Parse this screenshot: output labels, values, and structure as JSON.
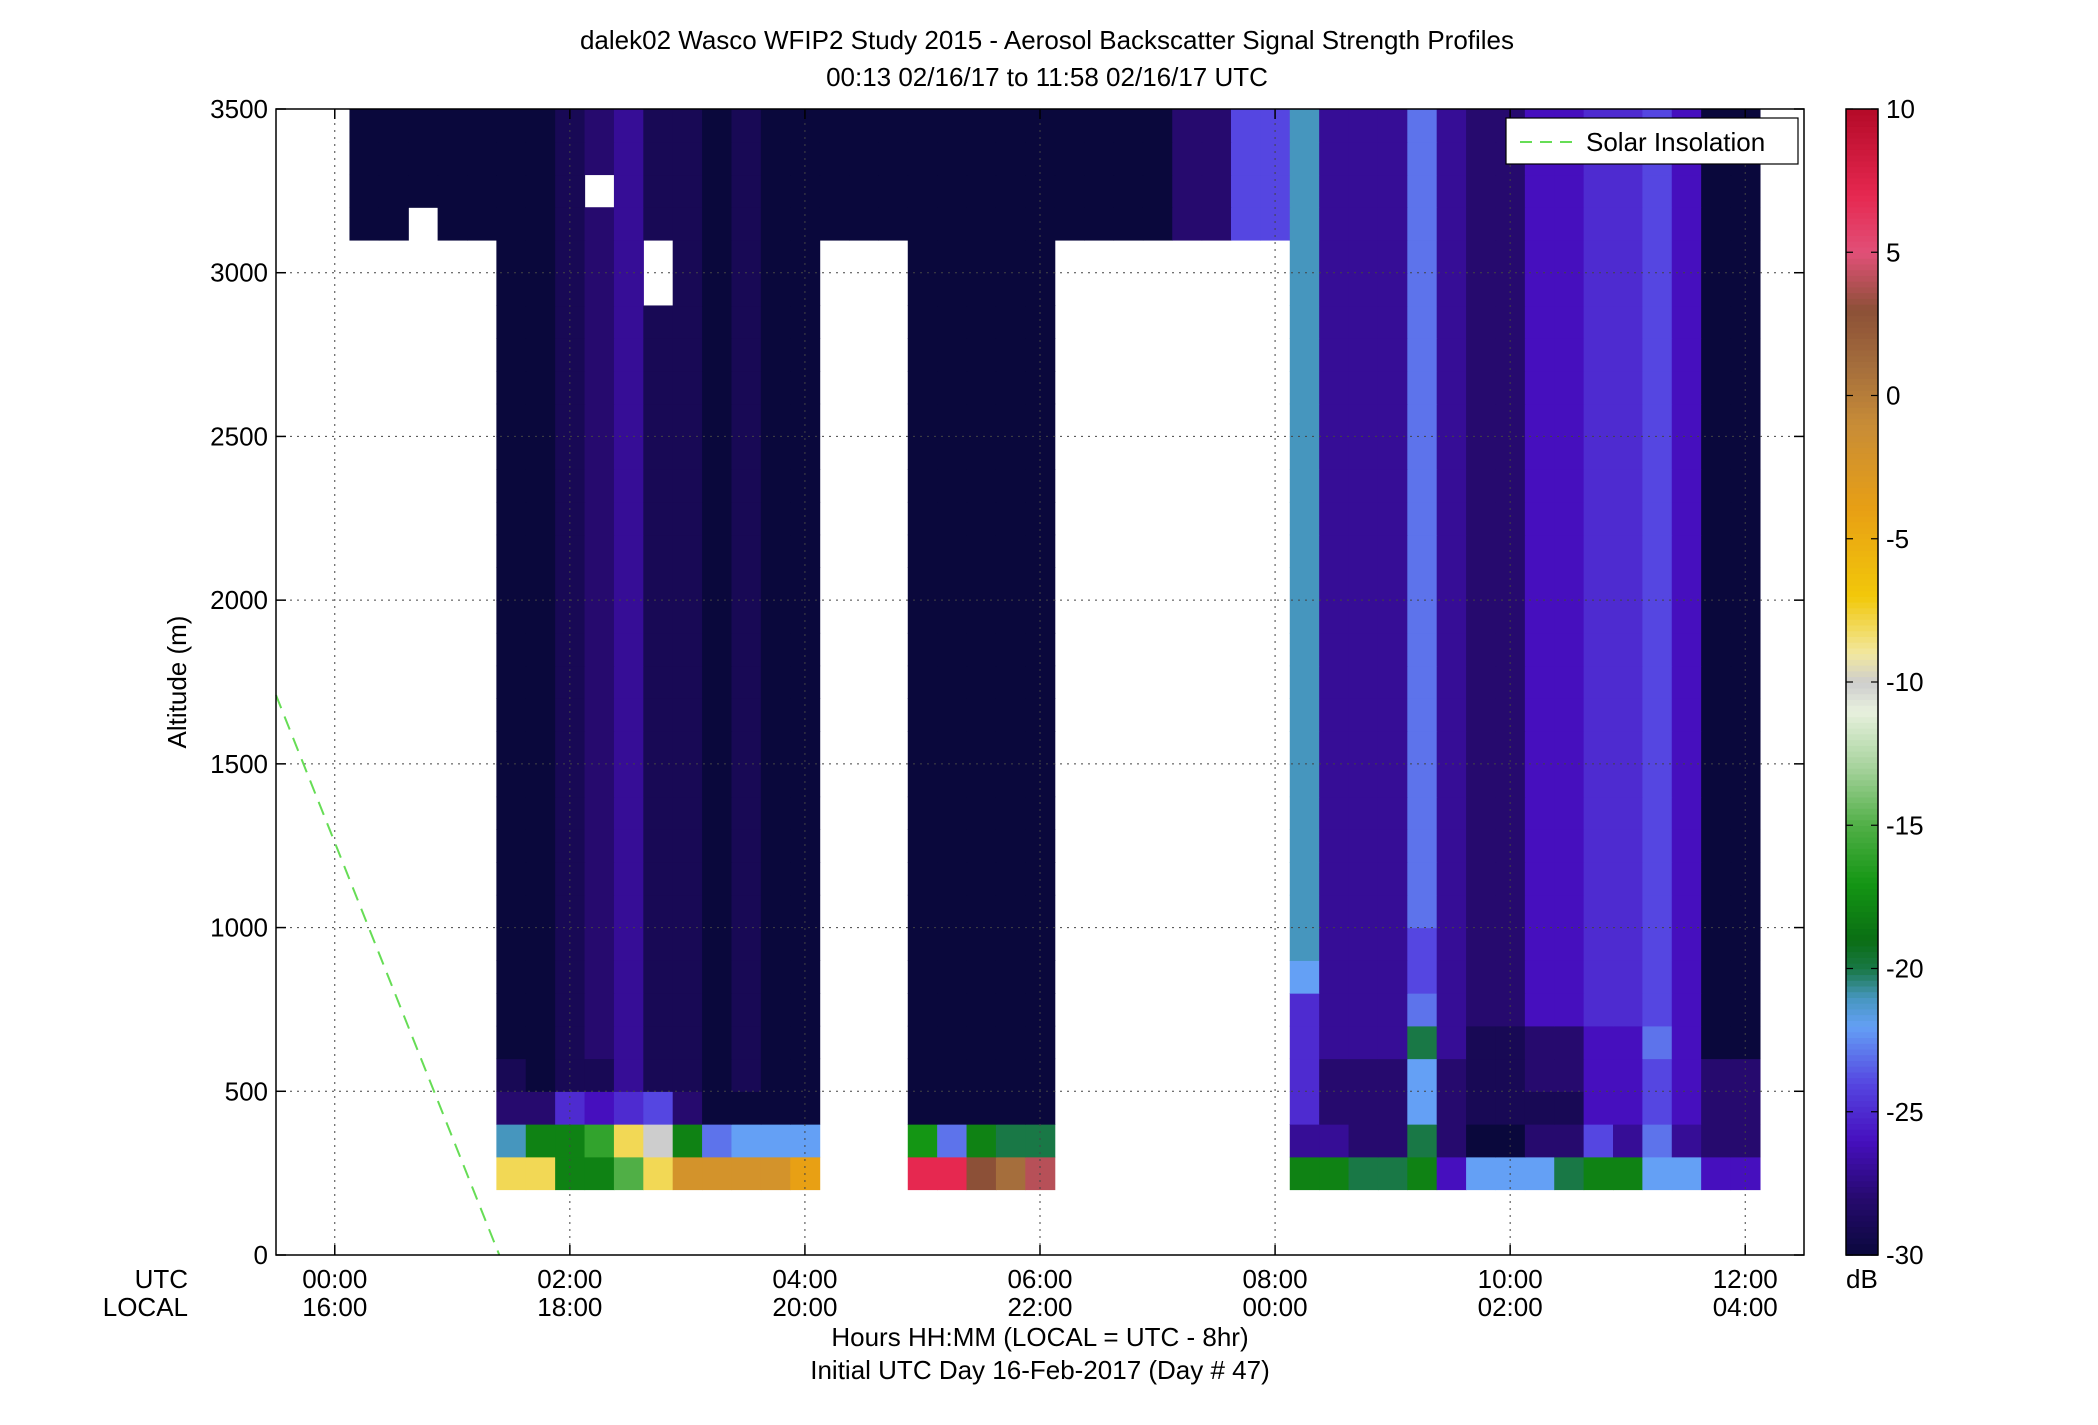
{
  "chart_data": {
    "type": "heatmap",
    "title": "dalek02 Wasco WFIP2 Study 2015 - Aerosol Backscatter Signal Strength Profiles",
    "subtitle": "00:13 02/16/17 to 11:58 02/16/17  UTC",
    "ylabel": "Altitude (m)",
    "xlabel": "Hours HH:MM  (LOCAL = UTC - 8hr)",
    "xlabel2": "Initial UTC Day 16-Feb-2017 (Day # 47)",
    "utc_label": "UTC",
    "local_label": "LOCAL",
    "x_ticks_utc": [
      "00:00",
      "02:00",
      "04:00",
      "06:00",
      "08:00",
      "10:00",
      "12:00"
    ],
    "x_ticks_local": [
      "16:00",
      "18:00",
      "20:00",
      "22:00",
      "00:00",
      "02:00",
      "04:00"
    ],
    "x_tick_hours": [
      0,
      2,
      4,
      6,
      8,
      10,
      12
    ],
    "xlim_hours": [
      -0.5,
      12.5
    ],
    "ylim": [
      0,
      3500
    ],
    "y_ticks": [
      0,
      500,
      1000,
      1500,
      2000,
      2500,
      3000,
      3500
    ],
    "y_tick_labels": [
      "0",
      "500",
      "1000",
      "1500",
      "2000",
      "2500",
      "3000",
      "3500"
    ],
    "grid": true,
    "legend": {
      "position": "top-right",
      "entries": [
        {
          "name": "Solar Insolation",
          "color": "#66dd55",
          "style": "dashed"
        }
      ]
    },
    "solar_insolation_line": {
      "x_hours": [
        -0.5,
        1.4
      ],
      "y_m": [
        1710,
        0
      ]
    },
    "colorbar": {
      "label": "dB",
      "range": [
        -30,
        10
      ],
      "ticks": [
        10,
        5,
        0,
        -5,
        -10,
        -15,
        -20,
        -25,
        -30
      ],
      "tick_labels": [
        "10",
        "5",
        "0",
        "-5",
        "-10",
        "-15",
        "-20",
        "-25",
        "-30"
      ]
    },
    "cell_width_hours": 0.25,
    "cell_height_m": 100,
    "first_center_hour": 0.25,
    "first_center_altitude_m": 250,
    "cells_db": [
      "-12,-7,-2,-2,-2,-8,-8,-18,-18,-15,-8,-2,-2,-2,-2,-4,-4,-12,4,7,7,3,1,4,2,2,1,1,-8,-16,-20,-26,-18,-18,-20,-20,-18,-26,-22,-22,-22,-20,-18,-18,-22,-22,-26,-26",
      "-20,-20,-20,-20,-20,-21,-18,-18,-16,-8,-10,-18,-23,-22,-22,-22,-6,-8,-30,-17,-23,-18,-20,-20,-25,-30,-30,-30,-30,-30,-30,-30,-27,-27,-28,-28,-20,-28,-30,-30,-28,-28,-24,-27,-23,-27,-28,-28",
      "-24,-25,-30,-30,-25,-28,-28,-25,-26,-25,-24,-28,-30,-30,-30,-30,-30,-30,-30,-30,-30,-30,-30,-30,-30,-30,-30,-30,-28,-28,-28,-28,-25,-28,-28,-28,-22,-28,-29,-29,-29,-29,-26,-26,-24,-26,-28,-28",
      "-29,-29,-30,-30,-30,-29,-30,-29,-29,-27,-29,-29,-30,-29,-30,-30,-30,-30,-30,-30,-30,-30,-30,-30,-30,-30,-30,-30,-28,-28,-27,-27,-25,-28,-28,-28,-22,-28,-29,-29,-28,-28,-26,-26,-24,-26,-28,-28",
      "-30,-30,-30,-30,-30,-30,-30,-29,-28,-27,-29,-29,-30,-29,-30,-30,-30,-30,-30,-30,-30,-30,-30,-30,-30,-30,-30,-30,-28,-28,-26,-26,-25,-27,-27,-27,-20,-27,-29,-29,-28,-28,-26,-26,-23,-26,-30,-30",
      "-30,-30,-30,-30,-30,-30,-30,-29,-28,-27,-29,-29,-30,-29,-30,-30,-30,-30,-30,-30,-30,-30,-30,-30,-30,-30,-30,-30,-28,-28,-25,-26,-25,-27,-27,-27,-23,-27,-28,-28,-26,-26,-25,-25,-24,-26,-30,-30",
      "-30,-30,-30,-30,-30,-30,-30,-29,-28,-27,-29,-29,-30,-29,-30,-30,-30,-30,-30,-30,-30,-30,-30,-30,-30,-30,-30,-30,-28,-28,-24,-24,-22,-27,-27,-27,-24,-27,-28,-28,-26,-26,-25,-25,-24,-26,-30,-30",
      "-30,-30,-30,-30,-30,-30,-30,-29,-28,-27,-29,-29,-30,-29,-30,-30,-30,-30,-30,-30,-30,-30,-30,-30,-30,-30,-30,-30,-28,-28,-24,-24,-21,-27,-27,-27,-24,-27,-28,-28,-26,-26,-25,-25,-24,-26,-30,-30",
      "-30,-30,-30,-30,-30,-30,-30,-29,-28,-27,-29,-29,-30,-29,-30,-30,-30,-30,-30,-30,-30,-30,-30,-30,-30,-30,-30,-30,-28,-28,-24,-24,-21,-27,-27,-27,-23,-27,-28,-28,-26,-26,-25,-25,-24,-26,-30,-30",
      "-30,-30,-30,-30,-30,-30,-30,-29,-28,-27,-29,-29,-30,-29,-30,-30,-30,-30,-30,-30,-30,-30,-30,-30,-30,-30,-30,-30,-28,-28,-24,-24,-21,-27,-27,-27,-23,-27,-28,-28,-26,-26,-25,-25,-24,-26,-30,-30",
      "-30,-30,-30,-30,-30,-30,-30,-29,-28,-27,-29,-29,-30,-29,-30,-30,-30,-30,-30,-30,-30,-30,-30,-30,-30,-30,-30,-30,-28,-28,-24,-24,-21,-27,-27,-27,-23,-27,-28,-28,-26,-26,-25,-25,-24,-26,-30,-30",
      "-30,-30,-30,-30,-30,-30,-30,-29,-28,-27,-29,-29,-30,-29,-30,-30,-30,-30,-30,-30,-30,-30,-30,-30,-30,-30,-30,-30,-28,-28,-24,-24,-21,-27,-27,-27,-23,-27,-28,-28,-26,-26,-25,-25,-24,-26,-30,-30",
      "-30,-30,-30,-30,-30,-30,-30,-29,-28,-27,-29,-29,-30,-29,-30,-30,-30,-30,-30,-30,-30,-30,-30,-30,-30,-30,-30,-30,-28,-28,-24,-24,-21,-27,-27,-27,-23,-27,-28,-28,-26,-26,-25,-25,-24,-26,-30,-30",
      "-30,-30,-30,-30,-30,-30,-30,-29,-28,-27,-29,-29,-30,-29,-30,-30,-30,-30,-30,-30,-30,-30,-30,-30,-30,-30,-30,-30,-28,-28,-24,-24,-21,-27,-27,-27,-23,-27,-28,-28,-26,-26,-25,-25,-24,-26,-30,-30",
      "-30,-30,-30,-30,-30,-30,-30,-29,-28,-27,-29,-29,-30,-29,-30,-30,-30,-30,-30,-30,-30,-30,-30,-30,-30,-30,-30,-30,-28,-28,-24,-24,-21,-27,-27,-27,-23,-27,-28,-28,-26,-26,-25,-25,-24,-26,-30,-30",
      "-30,-30,-30,-30,-30,-30,-30,-29,-28,-27,-29,-29,-30,-29,-30,-30,-30,-30,-30,-30,-30,-30,-30,-30,-30,-30,-30,-30,-28,-28,-24,-24,-21,-27,-27,-27,-23,-27,-28,-28,-26,-26,-25,-25,-24,-26,-30,-30",
      "-30,-30,-30,-30,-30,-30,-30,-29,-28,-27,-29,-29,-30,-29,-30,-30,-30,-30,-30,-30,-30,-30,-30,-30,-30,-30,-30,-30,-28,-28,-24,-24,-21,-27,-27,-27,-23,-27,-28,-28,-26,-26,-25,-25,-24,-26,-30,-30",
      "-30,-30,-30,-30,-30,-30,-30,-29,-28,-27,-29,-29,-30,-29,-30,-30,-30,-30,-30,-30,-30,-30,-30,-30,-30,-30,-30,-30,-28,-28,-24,-24,-21,-27,-27,-27,-23,-27,-28,-28,-26,-26,-25,-25,-24,-26,-30,-30",
      "-30,-30,-30,-30,-30,-30,-30,-29,-28,-27,-29,-29,-30,-29,-30,-30,-30,-30,-30,-30,-30,-30,-30,-30,-30,-30,-30,-30,-28,-28,-24,-24,-21,-27,-27,-27,-23,-27,-28,-28,-26,-26,-25,-25,-24,-26,-30,-30",
      "-30,-30,-30,-30,-30,-30,-30,-29,-28,-27,-29,-29,-30,-29,-30,-30,-30,-30,-30,-30,-30,-30,-30,-30,-30,-30,-30,-30,-28,-28,-24,-24,-21,-27,-27,-27,-23,-27,-28,-28,-26,-26,-25,-25,-24,-26,-30,-30",
      "-30,-30,-30,-30,-30,-30,-30,-29,-28,-27,-29,-29,-30,-29,-30,-30,-30,-30,-30,-30,-30,-30,-30,-30,-30,-30,-30,-30,-28,-28,-24,-24,-21,-27,-27,-27,-23,-27,-28,-28,-26,-26,-25,-25,-24,-26,-30,-30",
      "-30,-30,-30,-30,-30,-30,-30,-29,-28,-27,-29,-29,-30,-29,-30,-30,-30,-30,-30,-30,-30,-30,-30,-30,-30,-30,-30,-30,-28,-28,-24,-24,-21,-27,-27,-27,-23,-27,-28,-28,-26,-26,-25,-25,-24,-26,-30,-30",
      "-30,-30,-30,-30,-30,-30,-30,-29,-28,-27,-29,-29,-30,-29,-30,-30,-30,-30,-30,-30,-30,-30,-30,-30,-30,-30,-30,-30,-28,-28,-24,-24,-21,-27,-27,-27,-23,-27,-28,-28,-26,-26,-25,-25,-24,-26,-30,-30",
      "-30,-30,-30,-30,-30,-30,-30,-29,-28,-27,-29,-29,-30,-29,-30,-30,-30,-30,-30,-30,-30,-30,-30,-30,-30,-30,-30,-30,-28,-28,-24,-24,-21,-27,-27,-27,-23,-27,-28,-28,-26,-26,-25,-25,-24,-26,-30,-30",
      "-30,-30,-30,-30,-30,-30,-30,-29,-28,-27,-29,-29,-30,-29,-30,-30,-30,-30,-30,-30,-30,-30,-30,-30,-30,-30,-30,-30,-28,-28,-24,-24,-21,-27,-27,-27,-23,-27,-28,-28,-26,-26,-25,-25,-24,-26,-30,-30",
      "-30,-30,-30,-30,-30,-30,-30,-29,-28,-27,-29,-29,-30,-29,-30,-30,-30,-30,-30,-30,-30,-30,-30,-30,-30,-30,-30,-30,-28,-28,-24,-24,-21,-27,-27,-27,-23,-27,-28,-28,-26,-26,-25,-25,-24,-26,-30,-30",
      "-30,-30,-30,-30,-30,-30,-30,-29,-28,-27,-29,-29,-30,-29,-30,-30,-30,-30,-30,-30,-30,-30,-30,-30,-30,-30,-30,-30,-28,-28,-24,-24,-21,-27,-27,-27,-23,-27,-28,-28,-26,-26,-25,-25,-24,-26,-30,-30",
      "-30,-30,-30,-30,-30,-30,-30,-29,-28,-27,-29,-29,-30,-29,-30,-30,-30,-30,-30,-30,-30,-30,-30,-30,-30,-30,-30,-30,-28,-28,-24,-24,-21,-27,-27,-27,-23,-27,-28,-28,-26,-26,-25,-25,-24,-26,-30,-30",
      "-30,-30,-30,-30,-30,-30,-30,-29,-28,-27,-29,-29,-30,-29,-30,-30,-30,-30,-30,-30,-30,-30,-30,-30,-30,-30,-30,-30,-28,-28,-24,-24,-21,-27,-27,-27,-23,-27,-28,-28,-26,-26,-25,-25,-24,-26,-30,-30",
      "-30,-30,-30,-30,-30,-30,-30,-29,-28,-27,-29,-29,-30,-29,-30,-30,-30,-30,-30,-30,-30,-30,-30,-30,-30,-30,-30,-30,-28,-28,-24,-24,-21,-27,-27,-27,-23,-27,-28,-28,-26,-26,-25,-25,-24,-26,-30,-30",
      "-30,-30,-30,-30,-30,-30,-30,-29,-28,-27,-29,-29,-30,-29,-30,-30,-30,-30,-30,-30,-30,-30,-30,-30,-30,-30,-30,-30,-28,-28,-24,-24,-21,-27,-27,-27,-23,-27,-28,-28,-26,-26,-25,-25,-24,-26,-30,-30",
      "-30,-30,-30,-30,-30,-30,-30,-29,-28,-27,-29,-29,-30,-29,-30,-30,-30,-30,-30,-30,-30,-30,-30,-30,-30,-30,-30,-30,-28,-28,-24,-24,-21,-27,-27,-27,-23,-27,-28,-28,-26,-26,-25,-25,-24,-26,-30,-30",
      "-30,-30,-30,-30,-30,-30,-30,-29,-28,-27,-29,-29,-30,-29,-30,-30,-30,-30,-30,-30,-30,-30,-30,-30,-30,-30,-30,-30,-28,-28,-24,-24,-21,-27,-27,-27,-23,-27,-28,-28,-26,-26,-25,-25,-24,-26,-30,-30"
    ],
    "mask_rows": [
      "111111111111111111111111111111111111111111111111",
      "111111111111111111111111111111111111111111111111",
      "111111110111111111111111111111111111111111111111",
      "110111111111111111111111111111111111111111111111",
      "000001111101111100011111000000001111111111111111",
      "000001111101111100011111000000001111111111111111",
      "000001111111111100011111000000001111111111111111",
      "000001111111111100011111000000001111111111111111",
      "000001111111111100011111000000001111111111111111",
      "000001111111111100011111000000001111111111111111",
      "000001111111111100011111000000001111111111111111",
      "000001111111111100011111000000001111111111111111",
      "000001111111111100011111000000001111111111111111",
      "000001111111111100011111000000001111111111111111",
      "000001111111111100011111000000001111111111111111",
      "000001111111111100011111000000001111111111111111",
      "000001111111111100011111000000001111111111111111",
      "000001111111111100011111000000001111111111111111",
      "000001111111111100011111000000001111111111111111",
      "000001111111111100011111000000001111111111111111",
      "000001111111111100011111000000001111111111111111",
      "000001111111111100011111000000001111111111111111",
      "000001111111111100011111000000001111111111111111",
      "000001111111111100011111000000001111111111111111",
      "000001111111111100011111000000001111111111111111",
      "000001111111111100011111000000001111111111111111",
      "000001111111111100011111000000001111111111111111",
      "000001111111111100011111000000001111111111111111",
      "000001111111111100011111000000001111111111111111",
      "000001111111111100011111000000001111111111111111",
      "000001111111111100011111000000001111111111111111",
      "000001111111111100011111000000001111111111111111",
      "000001111111111100011111000000001111111111111111"
    ]
  }
}
